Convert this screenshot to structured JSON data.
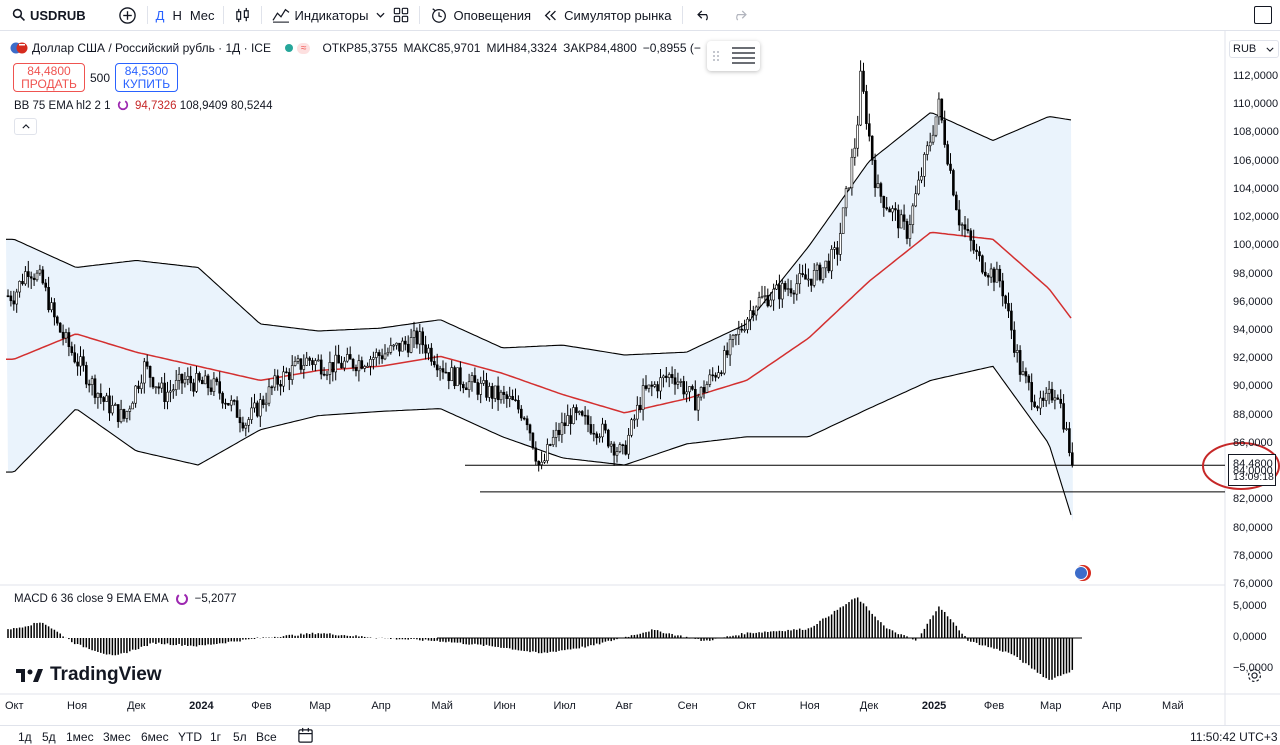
{
  "toolbar": {
    "symbol": "USDRUB",
    "interval_d": "Д",
    "interval_h": "Н",
    "interval_m": "Мес",
    "indicators": "Индикаторы",
    "alerts": "Оповещения",
    "replay": "Симулятор рынка"
  },
  "legend": {
    "title": "Доллар США / Российский рубль · 1Д · ICE",
    "open_key": "ОТКР",
    "open": "85,3755",
    "high_key": "МАКС",
    "high": "85,9701",
    "low_key": "МИН",
    "low": "84,3324",
    "close_key": "ЗАКР",
    "close": "84,4800",
    "change": "−0,8955 (−",
    "sell_price": "84,4800",
    "sell_label": "ПРОДАТЬ",
    "spread": "500",
    "buy_price": "84,5300",
    "buy_label": "КУПИТЬ",
    "bb_name": "BB 75 EMA hl2 2 1",
    "bb_basis": "94,7326",
    "bb_upper": "108,9409",
    "bb_lower": "80,5244",
    "macd_name": "MACD 6 36 close 9 EMA EMA",
    "macd_value": "−5,2077",
    "watermark": "TradingView"
  },
  "price_scale": {
    "currency": "RUB",
    "current_price": "84,4800",
    "countdown": "13:09:18"
  },
  "ranges": [
    "1д",
    "5д",
    "1мес",
    "3мес",
    "6мес",
    "YTD",
    "1г",
    "5л",
    "Все"
  ],
  "clock": "11:50:42 UTC+3",
  "colors": {
    "candle": "#000000",
    "bb_basis": "#d32f2f",
    "bb_band": "#000000",
    "bb_fill": "#eaf3fc",
    "macd_hist": "#000000",
    "annotation": "#c62828",
    "accent": "#2962ff"
  },
  "chart_data": [
    {
      "type": "candlestick",
      "title": "Доллар США / Российский рубль · 1Д · ICE",
      "ylim": [
        76,
        113
      ],
      "y_ticks": [
        "112,0000",
        "110,0000",
        "108,0000",
        "106,0000",
        "104,0000",
        "102,0000",
        "100,0000",
        "98,0000",
        "96,0000",
        "94,0000",
        "92,0000",
        "90,0000",
        "88,0000",
        "86,0000",
        "84,0000",
        "82,0000",
        "80,0000",
        "78,0000",
        "76,0000"
      ],
      "x_ticks": [
        "Окт",
        "Ноя",
        "Дек",
        "2024",
        "Фев",
        "Мар",
        "Апр",
        "Май",
        "Июн",
        "Июл",
        "Авг",
        "Сен",
        "Окт",
        "Ноя",
        "Дек",
        "2025",
        "Фев",
        "Мар",
        "Апр",
        "Май"
      ],
      "close_path": [
        {
          "x": "2023-10-01",
          "y": 96.5
        },
        {
          "x": "2023-10-08",
          "y": 98.5
        },
        {
          "x": "2023-10-15",
          "y": 97.5
        },
        {
          "x": "2023-10-22",
          "y": 94.5
        },
        {
          "x": "2023-11-01",
          "y": 92.0
        },
        {
          "x": "2023-11-15",
          "y": 89.0
        },
        {
          "x": "2023-11-25",
          "y": 87.8
        },
        {
          "x": "2023-12-05",
          "y": 91.5
        },
        {
          "x": "2023-12-15",
          "y": 89.5
        },
        {
          "x": "2023-12-25",
          "y": 90.5
        },
        {
          "x": "2024-01-10",
          "y": 90.0
        },
        {
          "x": "2024-01-25",
          "y": 87.5
        },
        {
          "x": "2024-02-10",
          "y": 90.5
        },
        {
          "x": "2024-02-25",
          "y": 92.0
        },
        {
          "x": "2024-03-05",
          "y": 91.5
        },
        {
          "x": "2024-03-20",
          "y": 91.8
        },
        {
          "x": "2024-04-05",
          "y": 92.5
        },
        {
          "x": "2024-04-20",
          "y": 93.5
        },
        {
          "x": "2024-05-05",
          "y": 91.0
        },
        {
          "x": "2024-05-20",
          "y": 90.0
        },
        {
          "x": "2024-06-05",
          "y": 89.0
        },
        {
          "x": "2024-06-13",
          "y": 88.0
        },
        {
          "x": "2024-06-20",
          "y": 84.0
        },
        {
          "x": "2024-06-25",
          "y": 86.0
        },
        {
          "x": "2024-07-05",
          "y": 88.0
        },
        {
          "x": "2024-07-20",
          "y": 87.0
        },
        {
          "x": "2024-07-31",
          "y": 85.2
        },
        {
          "x": "2024-08-10",
          "y": 89.5
        },
        {
          "x": "2024-08-25",
          "y": 91.0
        },
        {
          "x": "2024-09-05",
          "y": 89.0
        },
        {
          "x": "2024-09-20",
          "y": 92.0
        },
        {
          "x": "2024-10-05",
          "y": 96.0
        },
        {
          "x": "2024-10-20",
          "y": 97.0
        },
        {
          "x": "2024-11-05",
          "y": 98.0
        },
        {
          "x": "2024-11-15",
          "y": 99.5
        },
        {
          "x": "2024-11-25",
          "y": 108.0
        },
        {
          "x": "2024-11-27",
          "y": 112.0
        },
        {
          "x": "2024-12-05",
          "y": 104.0
        },
        {
          "x": "2024-12-20",
          "y": 101.0
        },
        {
          "x": "2025-01-05",
          "y": 110.0
        },
        {
          "x": "2025-01-15",
          "y": 102.0
        },
        {
          "x": "2025-01-25",
          "y": 99.0
        },
        {
          "x": "2025-02-05",
          "y": 97.5
        },
        {
          "x": "2025-02-15",
          "y": 91.0
        },
        {
          "x": "2025-02-25",
          "y": 88.5
        },
        {
          "x": "2025-03-05",
          "y": 90.0
        },
        {
          "x": "2025-03-13",
          "y": 84.48
        }
      ],
      "last_close": 84.48,
      "horizontal_levels": [
        84.48,
        82.6
      ]
    },
    {
      "type": "line",
      "title": "BB 75 EMA hl2 2 1",
      "series": [
        {
          "name": "Basis",
          "values_path": [
            {
              "x": "2023-10-01",
              "y": 92.0
            },
            {
              "x": "2023-11-01",
              "y": 93.8
            },
            {
              "x": "2023-12-01",
              "y": 92.5
            },
            {
              "x": "2024-01-01",
              "y": 91.5
            },
            {
              "x": "2024-02-01",
              "y": 90.5
            },
            {
              "x": "2024-03-01",
              "y": 91.2
            },
            {
              "x": "2024-04-01",
              "y": 91.5
            },
            {
              "x": "2024-05-01",
              "y": 92.2
            },
            {
              "x": "2024-06-01",
              "y": 91.0
            },
            {
              "x": "2024-07-01",
              "y": 89.5
            },
            {
              "x": "2024-08-01",
              "y": 88.2
            },
            {
              "x": "2024-09-01",
              "y": 89.2
            },
            {
              "x": "2024-10-01",
              "y": 90.5
            },
            {
              "x": "2024-11-01",
              "y": 93.5
            },
            {
              "x": "2024-12-01",
              "y": 97.5
            },
            {
              "x": "2025-01-01",
              "y": 101.0
            },
            {
              "x": "2025-02-01",
              "y": 100.5
            },
            {
              "x": "2025-03-01",
              "y": 97.0
            },
            {
              "x": "2025-03-13",
              "y": 94.73
            }
          ]
        },
        {
          "name": "Upper",
          "values_path": [
            {
              "x": "2023-10-01",
              "y": 100.5
            },
            {
              "x": "2023-11-01",
              "y": 98.5
            },
            {
              "x": "2023-12-01",
              "y": 99.0
            },
            {
              "x": "2024-01-01",
              "y": 98.5
            },
            {
              "x": "2024-02-01",
              "y": 94.5
            },
            {
              "x": "2024-03-01",
              "y": 94.0
            },
            {
              "x": "2024-04-01",
              "y": 94.2
            },
            {
              "x": "2024-05-01",
              "y": 94.8
            },
            {
              "x": "2024-06-01",
              "y": 92.8
            },
            {
              "x": "2024-07-01",
              "y": 93.0
            },
            {
              "x": "2024-08-01",
              "y": 92.3
            },
            {
              "x": "2024-09-01",
              "y": 92.5
            },
            {
              "x": "2024-10-01",
              "y": 94.5
            },
            {
              "x": "2024-11-01",
              "y": 100.0
            },
            {
              "x": "2024-12-01",
              "y": 106.0
            },
            {
              "x": "2025-01-01",
              "y": 109.5
            },
            {
              "x": "2025-02-01",
              "y": 107.5
            },
            {
              "x": "2025-03-01",
              "y": 109.2
            },
            {
              "x": "2025-03-13",
              "y": 108.94
            }
          ]
        },
        {
          "name": "Lower",
          "values_path": [
            {
              "x": "2023-10-01",
              "y": 84.0
            },
            {
              "x": "2023-11-01",
              "y": 88.5
            },
            {
              "x": "2023-12-01",
              "y": 85.5
            },
            {
              "x": "2024-01-01",
              "y": 84.5
            },
            {
              "x": "2024-02-01",
              "y": 87.0
            },
            {
              "x": "2024-03-01",
              "y": 88.0
            },
            {
              "x": "2024-04-01",
              "y": 88.3
            },
            {
              "x": "2024-05-01",
              "y": 88.5
            },
            {
              "x": "2024-06-01",
              "y": 86.5
            },
            {
              "x": "2024-07-01",
              "y": 85.0
            },
            {
              "x": "2024-08-01",
              "y": 84.5
            },
            {
              "x": "2024-09-01",
              "y": 86.0
            },
            {
              "x": "2024-10-01",
              "y": 86.5
            },
            {
              "x": "2024-11-01",
              "y": 86.5
            },
            {
              "x": "2024-12-01",
              "y": 88.5
            },
            {
              "x": "2025-01-01",
              "y": 90.5
            },
            {
              "x": "2025-02-01",
              "y": 91.5
            },
            {
              "x": "2025-03-01",
              "y": 86.0
            },
            {
              "x": "2025-03-13",
              "y": 80.52
            }
          ]
        }
      ]
    },
    {
      "type": "bar",
      "title": "MACD 6 36 close 9 EMA EMA",
      "ylim": [
        -7,
        7.5
      ],
      "y_ticks": [
        "5,0000",
        "0,0000",
        "−5,0000"
      ],
      "histogram_path": [
        {
          "x": "2023-10-01",
          "y": 1.5
        },
        {
          "x": "2023-10-15",
          "y": 2.6
        },
        {
          "x": "2023-11-01",
          "y": -1.0
        },
        {
          "x": "2023-11-20",
          "y": -3.0
        },
        {
          "x": "2023-12-10",
          "y": -0.8
        },
        {
          "x": "2024-01-01",
          "y": -1.3
        },
        {
          "x": "2024-02-01",
          "y": 0.0
        },
        {
          "x": "2024-03-01",
          "y": 0.8
        },
        {
          "x": "2024-04-01",
          "y": 0.0
        },
        {
          "x": "2024-05-01",
          "y": -0.5
        },
        {
          "x": "2024-06-01",
          "y": -1.5
        },
        {
          "x": "2024-06-20",
          "y": -2.5
        },
        {
          "x": "2024-07-15",
          "y": -1.3
        },
        {
          "x": "2024-08-15",
          "y": 1.3
        },
        {
          "x": "2024-09-10",
          "y": -0.5
        },
        {
          "x": "2024-10-01",
          "y": 0.8
        },
        {
          "x": "2024-11-01",
          "y": 1.5
        },
        {
          "x": "2024-11-25",
          "y": 6.6
        },
        {
          "x": "2024-12-10",
          "y": 1.5
        },
        {
          "x": "2024-12-25",
          "y": -0.5
        },
        {
          "x": "2025-01-05",
          "y": 5.2
        },
        {
          "x": "2025-01-20",
          "y": -0.5
        },
        {
          "x": "2025-02-10",
          "y": -2.5
        },
        {
          "x": "2025-03-01",
          "y": -6.8
        },
        {
          "x": "2025-03-13",
          "y": -5.2
        }
      ]
    }
  ]
}
